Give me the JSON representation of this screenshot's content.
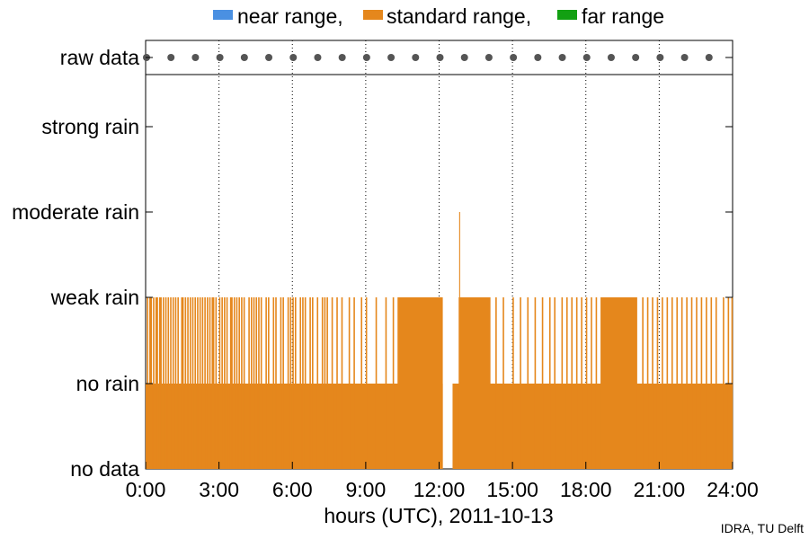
{
  "chart_data": {
    "type": "bar",
    "xlabel": "hours (UTC), 2011-10-13",
    "xlim": [
      0,
      24
    ],
    "x_ticks": [
      "0:00",
      "3:00",
      "6:00",
      "9:00",
      "12:00",
      "15:00",
      "18:00",
      "21:00",
      "24:00"
    ],
    "y_categories": [
      "no data",
      "no rain",
      "weak rain",
      "moderate rain",
      "strong rain",
      "raw data"
    ],
    "grid": "vertical-dotted",
    "legend_position": "top-center",
    "legend": [
      {
        "name": "near range,",
        "color": "#4a90e2"
      },
      {
        "name": "standard range,",
        "color": "#e5871c"
      },
      {
        "name": "far range",
        "color": "#12a012"
      }
    ],
    "raw_data_hours": [
      0,
      1,
      2,
      3,
      4,
      5,
      6,
      7,
      8,
      9,
      10,
      11,
      12,
      13,
      14,
      15,
      16,
      17,
      18,
      19,
      20,
      21,
      22,
      23
    ],
    "series": [
      {
        "name": "standard range,",
        "color": "#e5871c",
        "segments": [
          {
            "start": 0.0,
            "end": 12.15,
            "level": 1
          },
          {
            "start": 12.55,
            "end": 24.0,
            "level": 1
          },
          {
            "start": 10.3,
            "end": 12.15,
            "level": 2
          },
          {
            "start": 12.8,
            "end": 14.1,
            "level": 2
          },
          {
            "start": 18.6,
            "end": 20.1,
            "level": 2
          },
          {
            "start": 12.82,
            "end": 12.86,
            "level": 3
          }
        ],
        "weak_rain_spikes": [
          0.05,
          0.15,
          0.2,
          0.3,
          0.4,
          0.45,
          0.55,
          0.6,
          0.7,
          0.8,
          0.9,
          1.0,
          1.1,
          1.2,
          1.3,
          1.45,
          1.5,
          1.6,
          1.7,
          1.8,
          1.9,
          2.0,
          2.1,
          2.2,
          2.3,
          2.4,
          2.5,
          2.6,
          2.7,
          2.75,
          2.85,
          3.0,
          3.1,
          3.2,
          3.3,
          3.45,
          3.5,
          3.6,
          3.7,
          3.8,
          3.9,
          4.0,
          4.2,
          4.3,
          4.4,
          4.5,
          4.6,
          4.7,
          4.9,
          5.0,
          5.2,
          5.3,
          5.5,
          5.6,
          5.8,
          5.9,
          6.0,
          6.1,
          6.3,
          6.4,
          6.5,
          6.7,
          6.8,
          7.0,
          7.2,
          7.3,
          7.4,
          7.6,
          7.8,
          8.0,
          8.3,
          8.5,
          8.8,
          9.0,
          9.4,
          9.8,
          10.1,
          14.3,
          14.6,
          15.0,
          15.3,
          15.6,
          15.9,
          16.2,
          16.5,
          16.7,
          17.0,
          17.2,
          17.4,
          17.6,
          17.8,
          18.0,
          18.2,
          18.4,
          20.3,
          20.5,
          20.7,
          20.9,
          21.1,
          21.3,
          21.5,
          21.7,
          21.9,
          22.1,
          22.3,
          22.5,
          22.7,
          22.9,
          23.1,
          23.3,
          23.6,
          23.8,
          23.95
        ]
      }
    ],
    "credit": "IDRA, TU Delft"
  }
}
